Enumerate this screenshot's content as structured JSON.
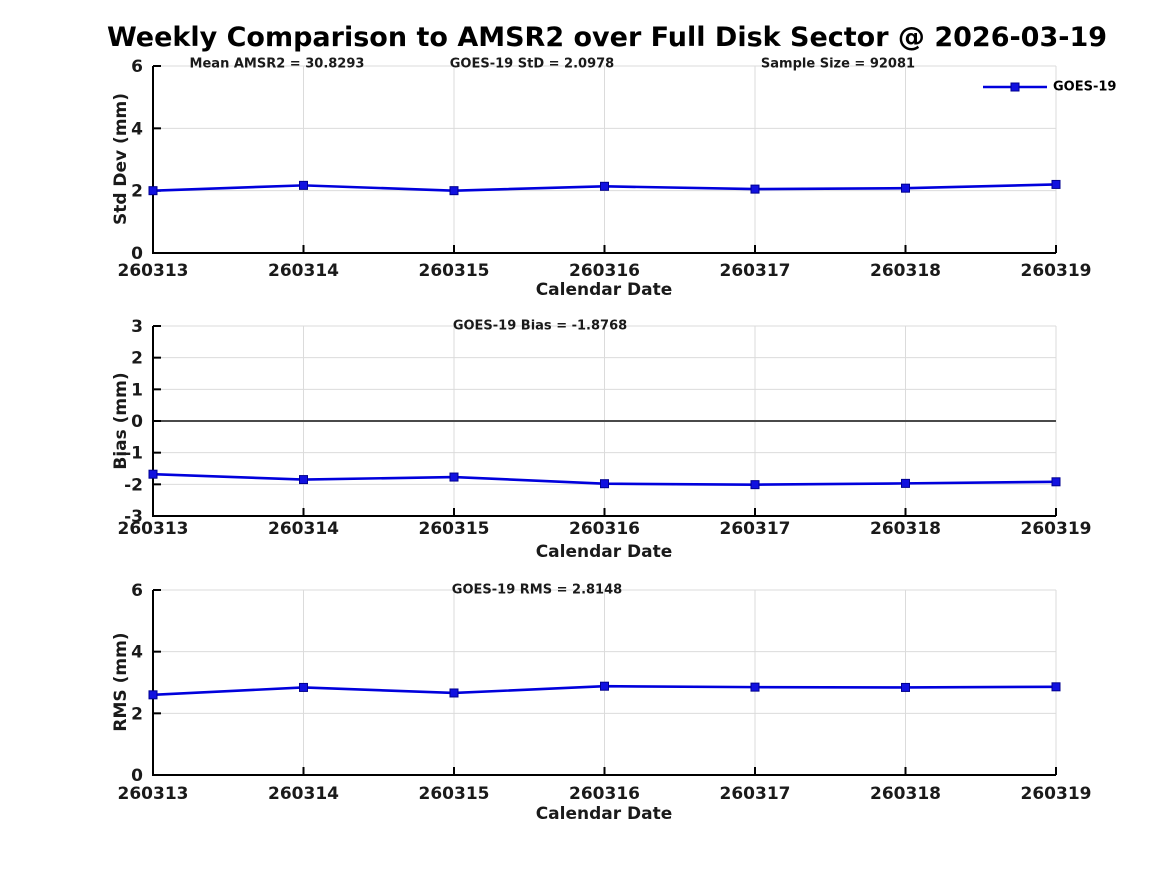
{
  "title": "Weekly Comparison to AMSR2 over Full Disk Sector @ 2026-03-19",
  "legend": {
    "label": "GOES-19"
  },
  "colors": {
    "line": "#0000DC",
    "marker": "#1111E0",
    "marker_edge": "#000090",
    "grid": "#DBDBDB",
    "axis": "#000000",
    "zero_line": "#4A4A4A",
    "text": "#1A1A1A"
  },
  "chart_data": [
    {
      "type": "line",
      "annotations": [
        "Mean AMSR2 = 30.8293",
        "GOES-19 StD = 2.0978",
        "Sample Size = 92081"
      ],
      "x_categories": [
        "260313",
        "260314",
        "260315",
        "260316",
        "260317",
        "260318",
        "260319"
      ],
      "series": [
        {
          "name": "GOES-19",
          "values": [
            2.0,
            2.17,
            2.0,
            2.14,
            2.05,
            2.08,
            2.2
          ]
        }
      ],
      "xlabel": "Calendar Date",
      "ylabel": "Std Dev (mm)",
      "ylim": [
        0,
        6
      ],
      "yticks": [
        0,
        2,
        4,
        6
      ],
      "grid": true,
      "zero_line": false,
      "legend_position": "top-right"
    },
    {
      "type": "line",
      "annotations": [
        "GOES-19 Bias  = -1.8768"
      ],
      "x_categories": [
        "260313",
        "260314",
        "260315",
        "260316",
        "260317",
        "260318",
        "260319"
      ],
      "series": [
        {
          "name": "GOES-19",
          "values": [
            -1.68,
            -1.85,
            -1.77,
            -1.98,
            -2.01,
            -1.97,
            -1.92
          ]
        }
      ],
      "xlabel": "Calendar Date",
      "ylabel": "Bias (mm)",
      "ylim": [
        -3,
        3
      ],
      "yticks": [
        -3,
        -2,
        -1,
        0,
        1,
        2,
        3
      ],
      "grid": true,
      "zero_line": true
    },
    {
      "type": "line",
      "annotations": [
        "GOES-19 RMS = 2.8148"
      ],
      "x_categories": [
        "260313",
        "260314",
        "260315",
        "260316",
        "260317",
        "260318",
        "260319"
      ],
      "series": [
        {
          "name": "GOES-19",
          "values": [
            2.6,
            2.84,
            2.66,
            2.88,
            2.85,
            2.84,
            2.86
          ]
        }
      ],
      "xlabel": "Calendar Date",
      "ylabel": "RMS (mm)",
      "ylim": [
        0,
        6
      ],
      "yticks": [
        0,
        2,
        4,
        6
      ],
      "grid": true,
      "zero_line": false
    }
  ]
}
